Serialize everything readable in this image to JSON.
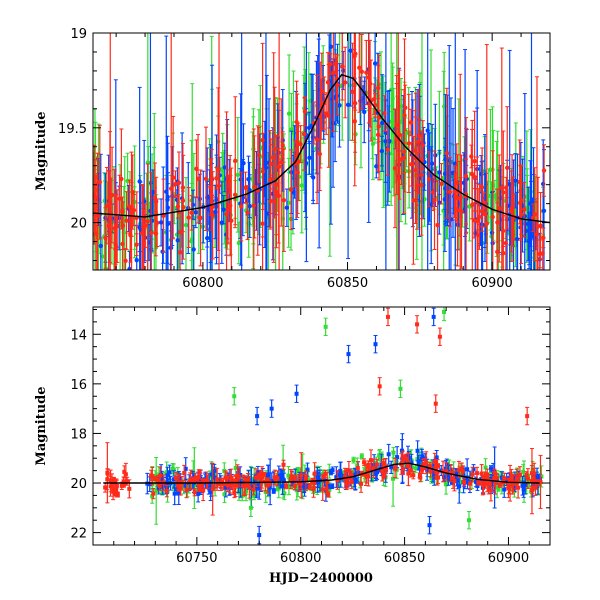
{
  "chart_data": [
    {
      "type": "scatter",
      "title": "",
      "xlabel": "",
      "ylabel": "Magnitude",
      "xlim": [
        60762,
        60920
      ],
      "ylim": [
        20.25,
        19.0
      ],
      "y_inverted": true,
      "x_ticks": [
        60800,
        60850,
        60900
      ],
      "x_tick_labels": [
        "60800",
        "60850",
        "60900"
      ],
      "y_ticks": [
        19,
        19.5,
        20
      ],
      "y_tick_labels": [
        "19",
        "19.5",
        "20"
      ],
      "grid": false,
      "legend": "none",
      "series": [
        {
          "color": "#0044ff",
          "marker": "circle",
          "error_bars": true
        },
        {
          "color": "#33dd33",
          "marker": "circle",
          "error_bars": true
        },
        {
          "color": "#ff2a1a",
          "marker": "circle",
          "error_bars": true
        }
      ],
      "model_curve": {
        "color": "#000000",
        "x": [
          60762,
          60780,
          60800,
          60815,
          60825,
          60832,
          60838,
          60844,
          60848,
          60852,
          60856,
          60862,
          60870,
          60880,
          60890,
          60900,
          60910,
          60920
        ],
        "y": [
          19.95,
          19.97,
          19.92,
          19.85,
          19.78,
          19.68,
          19.5,
          19.3,
          19.22,
          19.24,
          19.32,
          19.45,
          19.6,
          19.75,
          19.85,
          19.93,
          19.98,
          20.0
        ]
      }
    },
    {
      "type": "scatter",
      "title": "",
      "xlabel": "HJD−2400000",
      "ylabel": "Magnitude",
      "xlim": [
        60700,
        60920
      ],
      "ylim": [
        22.5,
        12.9
      ],
      "y_inverted": true,
      "x_ticks": [
        60750,
        60800,
        60850,
        60900
      ],
      "x_tick_labels": [
        "60750",
        "60800",
        "60850",
        "60900"
      ],
      "y_ticks": [
        14,
        16,
        18,
        20,
        22
      ],
      "y_tick_labels": [
        "14",
        "16",
        "18",
        "20",
        "22"
      ],
      "grid": false,
      "legend": "none",
      "series": [
        {
          "color": "#0044ff",
          "marker": "square",
          "error_bars": true
        },
        {
          "color": "#33dd33",
          "marker": "square",
          "error_bars": true
        },
        {
          "color": "#ff2a1a",
          "marker": "square",
          "error_bars": true
        }
      ],
      "outliers": [
        {
          "series": 1,
          "x": 60812,
          "y": 13.7
        },
        {
          "series": 0,
          "x": 60823,
          "y": 14.8
        },
        {
          "series": 0,
          "x": 60836,
          "y": 14.4
        },
        {
          "series": 2,
          "x": 60842,
          "y": 13.3
        },
        {
          "series": 2,
          "x": 60856,
          "y": 13.6
        },
        {
          "series": 0,
          "x": 60864,
          "y": 13.3
        },
        {
          "series": 2,
          "x": 60867,
          "y": 14.1
        },
        {
          "series": 1,
          "x": 60869,
          "y": 13.1
        },
        {
          "series": 2,
          "x": 60838,
          "y": 16.1
        },
        {
          "series": 1,
          "x": 60848,
          "y": 16.2
        },
        {
          "series": 1,
          "x": 60768,
          "y": 16.5
        },
        {
          "series": 0,
          "x": 60798,
          "y": 16.4
        },
        {
          "series": 0,
          "x": 60779,
          "y": 17.3
        },
        {
          "series": 0,
          "x": 60786,
          "y": 17.0
        },
        {
          "series": 2,
          "x": 60865,
          "y": 16.8
        },
        {
          "series": 2,
          "x": 60909,
          "y": 17.3
        },
        {
          "series": 0,
          "x": 60780,
          "y": 22.1
        },
        {
          "series": 0,
          "x": 60862,
          "y": 21.7
        },
        {
          "series": 1,
          "x": 60776,
          "y": 21.0
        },
        {
          "series": 1,
          "x": 60881,
          "y": 21.5
        }
      ],
      "model_curve": {
        "color": "#000000",
        "x": [
          60705,
          60725,
          60750,
          60775,
          60800,
          60815,
          60825,
          60835,
          60845,
          60852,
          60860,
          60870,
          60885,
          60900,
          60915
        ],
        "y": [
          20.0,
          20.0,
          20.0,
          19.98,
          19.95,
          19.88,
          19.75,
          19.5,
          19.25,
          19.2,
          19.35,
          19.6,
          19.85,
          19.97,
          20.0
        ]
      }
    }
  ]
}
